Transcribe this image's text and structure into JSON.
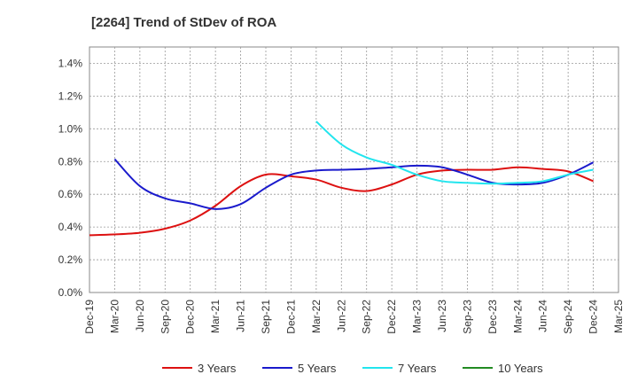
{
  "chart_data": {
    "type": "line",
    "title": "[2264]  Trend of StDev of ROA",
    "x_ticks": [
      "Dec-19",
      "Mar-20",
      "Jun-20",
      "Sep-20",
      "Dec-20",
      "Mar-21",
      "Jun-21",
      "Sep-21",
      "Dec-21",
      "Mar-22",
      "Jun-22",
      "Sep-22",
      "Dec-22",
      "Mar-23",
      "Jun-23",
      "Sep-23",
      "Dec-23",
      "Mar-24",
      "Jun-24",
      "Sep-24",
      "Dec-24",
      "Mar-25"
    ],
    "y_ticks": [
      "0.0%",
      "0.2%",
      "0.4%",
      "0.6%",
      "0.8%",
      "1.0%",
      "1.2%",
      "1.4%"
    ],
    "ylim": [
      0,
      1.5
    ],
    "ylabel": "",
    "xlabel": "",
    "grid": true,
    "legend_position": "bottom",
    "series": [
      {
        "name": "3 Years",
        "color": "#dd1111",
        "x": [
          "Dec-19",
          "Mar-20",
          "Jun-20",
          "Sep-20",
          "Dec-20",
          "Mar-21",
          "Jun-21",
          "Sep-21",
          "Dec-21",
          "Mar-22",
          "Jun-22",
          "Sep-22",
          "Dec-22",
          "Mar-23",
          "Jun-23",
          "Sep-23",
          "Dec-23",
          "Mar-24",
          "Jun-24",
          "Sep-24",
          "Dec-24"
        ],
        "values": [
          0.35,
          0.355,
          0.365,
          0.39,
          0.44,
          0.53,
          0.65,
          0.72,
          0.71,
          0.69,
          0.64,
          0.62,
          0.66,
          0.72,
          0.745,
          0.75,
          0.75,
          0.765,
          0.755,
          0.74,
          0.68
        ]
      },
      {
        "name": "5 Years",
        "color": "#1a1acc",
        "x": [
          "Mar-20",
          "Jun-20",
          "Sep-20",
          "Dec-20",
          "Mar-21",
          "Jun-21",
          "Sep-21",
          "Dec-21",
          "Mar-22",
          "Jun-22",
          "Sep-22",
          "Dec-22",
          "Mar-23",
          "Jun-23",
          "Sep-23",
          "Dec-23",
          "Mar-24",
          "Jun-24",
          "Sep-24",
          "Dec-24"
        ],
        "values": [
          0.815,
          0.65,
          0.575,
          0.545,
          0.51,
          0.54,
          0.64,
          0.72,
          0.745,
          0.75,
          0.755,
          0.765,
          0.775,
          0.765,
          0.72,
          0.67,
          0.66,
          0.67,
          0.72,
          0.795
        ]
      },
      {
        "name": "7 Years",
        "color": "#22e5ee",
        "x": [
          "Mar-22",
          "Jun-22",
          "Sep-22",
          "Dec-22",
          "Mar-23",
          "Jun-23",
          "Sep-23",
          "Dec-23",
          "Mar-24",
          "Jun-24",
          "Sep-24",
          "Dec-24"
        ],
        "values": [
          1.045,
          0.905,
          0.825,
          0.78,
          0.72,
          0.68,
          0.67,
          0.665,
          0.67,
          0.68,
          0.72,
          0.75
        ]
      },
      {
        "name": "10 Years",
        "color": "#228b22",
        "x": [],
        "values": []
      }
    ]
  }
}
